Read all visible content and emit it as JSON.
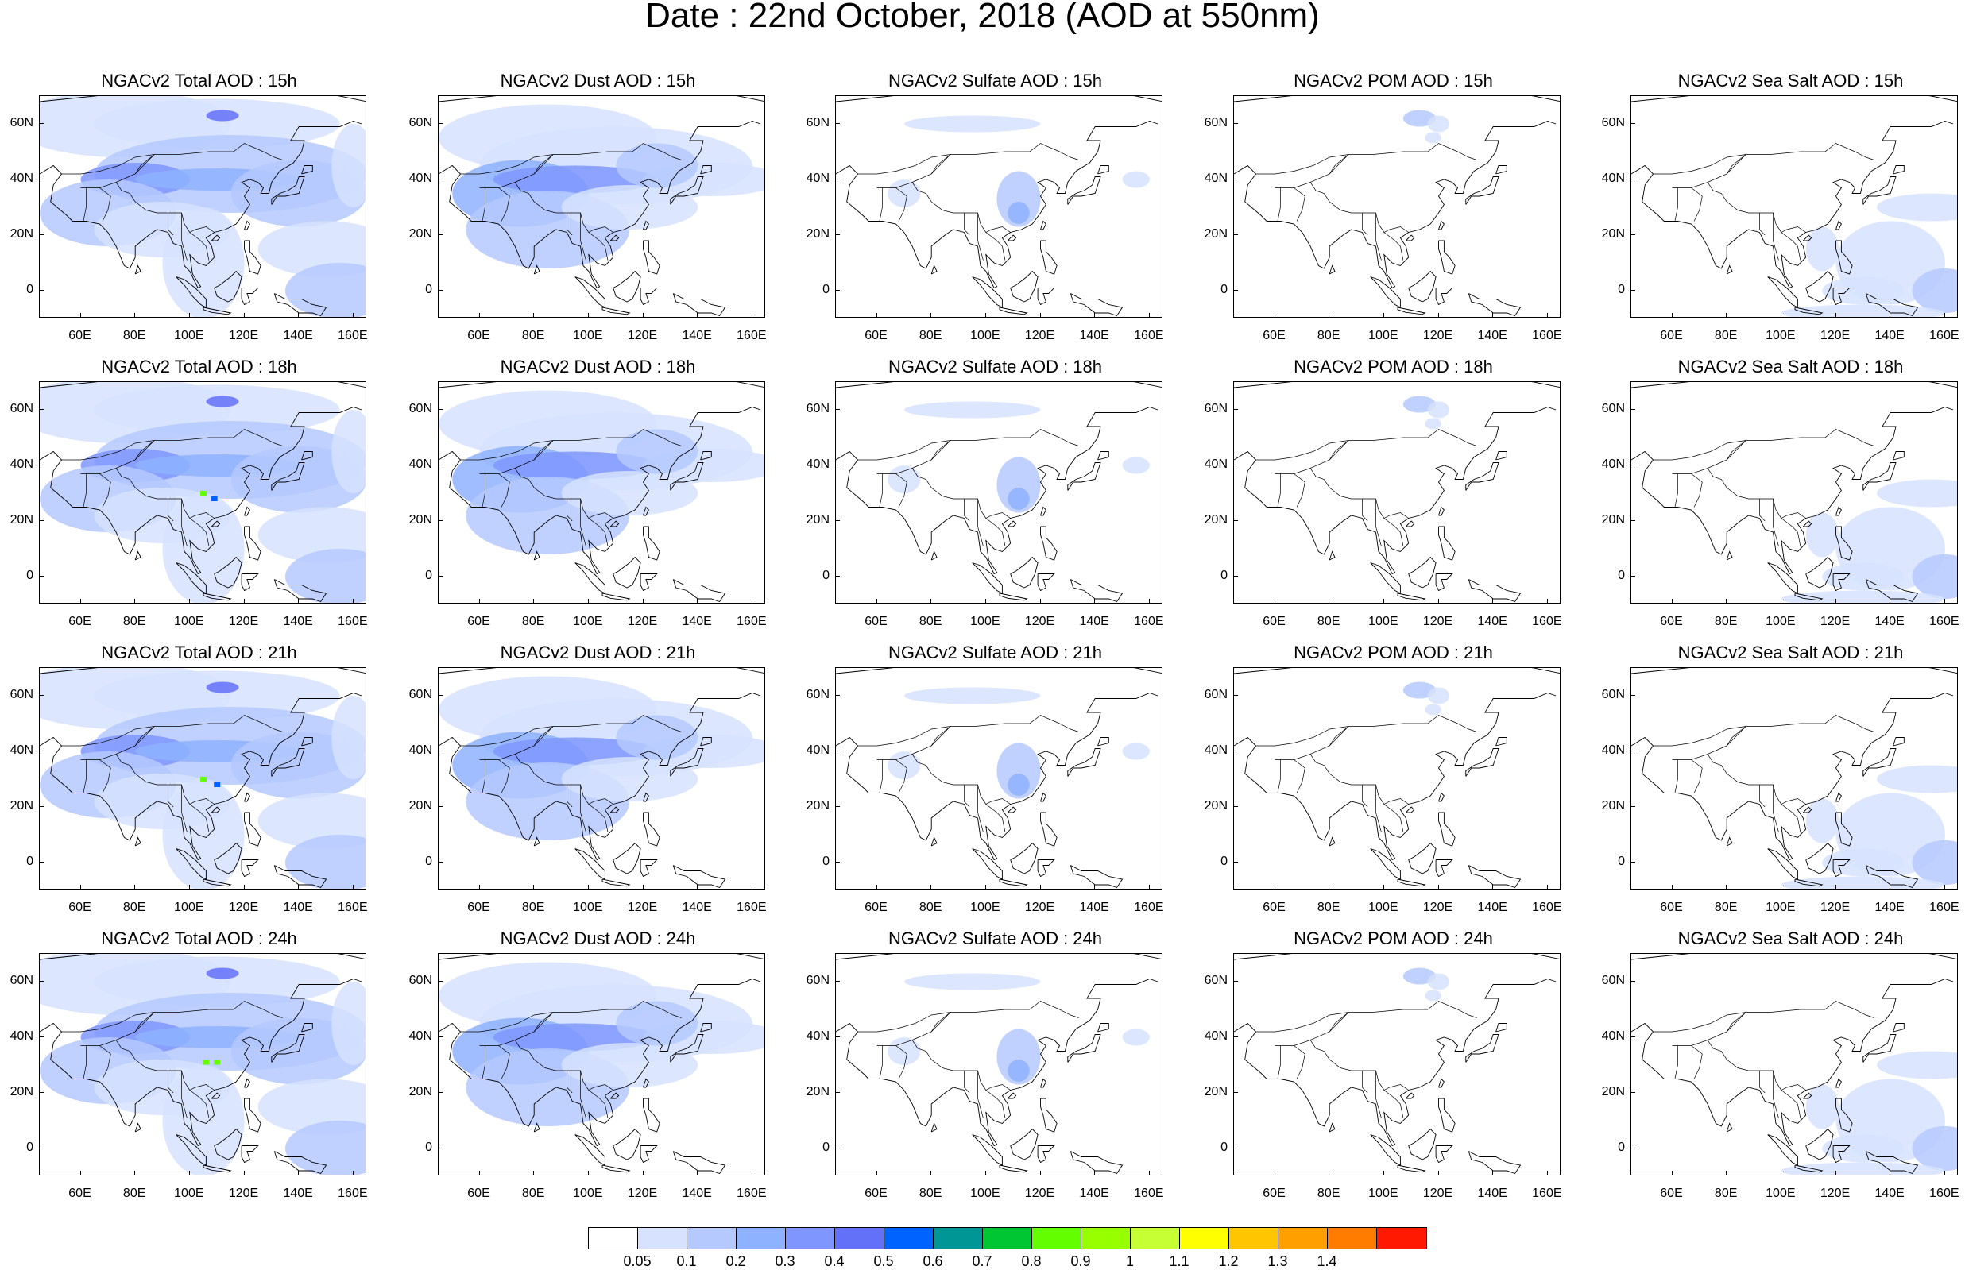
{
  "title": "Date : 22nd October, 2018 (AOD at 550nm)",
  "axes": {
    "lat_labels": [
      "60N",
      "40N",
      "20N",
      "0"
    ],
    "lon_labels": [
      "60E",
      "80E",
      "100E",
      "120E",
      "140E",
      "160E"
    ]
  },
  "panels": [
    {
      "title": "NGACv2 Total AOD : 15h",
      "variable": "total",
      "hour": "15h"
    },
    {
      "title": "NGACv2 Dust AOD : 15h",
      "variable": "dust",
      "hour": "15h"
    },
    {
      "title": "NGACv2 Sulfate AOD : 15h",
      "variable": "sulfate",
      "hour": "15h"
    },
    {
      "title": "NGACv2 POM AOD : 15h",
      "variable": "pom",
      "hour": "15h"
    },
    {
      "title": "NGACv2 Sea Salt AOD : 15h",
      "variable": "seasalt",
      "hour": "15h"
    },
    {
      "title": "NGACv2 Total AOD : 18h",
      "variable": "total",
      "hour": "18h"
    },
    {
      "title": "NGACv2 Dust AOD : 18h",
      "variable": "dust",
      "hour": "18h"
    },
    {
      "title": "NGACv2 Sulfate AOD : 18h",
      "variable": "sulfate",
      "hour": "18h"
    },
    {
      "title": "NGACv2 POM AOD : 18h",
      "variable": "pom",
      "hour": "18h"
    },
    {
      "title": "NGACv2 Sea Salt AOD : 18h",
      "variable": "seasalt",
      "hour": "18h"
    },
    {
      "title": "NGACv2 Total AOD : 21h",
      "variable": "total",
      "hour": "21h"
    },
    {
      "title": "NGACv2 Dust AOD : 21h",
      "variable": "dust",
      "hour": "21h"
    },
    {
      "title": "NGACv2 Sulfate AOD : 21h",
      "variable": "sulfate",
      "hour": "21h"
    },
    {
      "title": "NGACv2 POM AOD : 21h",
      "variable": "pom",
      "hour": "21h"
    },
    {
      "title": "NGACv2 Sea Salt AOD : 21h",
      "variable": "seasalt",
      "hour": "21h"
    },
    {
      "title": "NGACv2 Total AOD : 24h",
      "variable": "total",
      "hour": "24h"
    },
    {
      "title": "NGACv2 Dust AOD : 24h",
      "variable": "dust",
      "hour": "24h"
    },
    {
      "title": "NGACv2 Sulfate AOD : 24h",
      "variable": "sulfate",
      "hour": "24h"
    },
    {
      "title": "NGACv2 POM AOD : 24h",
      "variable": "pom",
      "hour": "24h"
    },
    {
      "title": "NGACv2 Sea Salt  AOD : 24h",
      "variable": "seasalt",
      "hour": "24h"
    }
  ],
  "colorbar": {
    "colors": [
      "#ffffff",
      "#d6e2ff",
      "#b5c9ff",
      "#8eb2ff",
      "#7f96ff",
      "#6370f8",
      "#0063ff",
      "#009696",
      "#00c633",
      "#63ff00",
      "#96ff00",
      "#c6ff33",
      "#ffff00",
      "#ffc600",
      "#ffa000",
      "#ff7c00",
      "#ff1900"
    ],
    "labels": [
      "0.05",
      "0.1",
      "0.2",
      "0.3",
      "0.4",
      "0.5",
      "0.6",
      "0.7",
      "0.8",
      "0.9",
      "1",
      "1.1",
      "1.2",
      "1.3",
      "1.4"
    ]
  }
}
